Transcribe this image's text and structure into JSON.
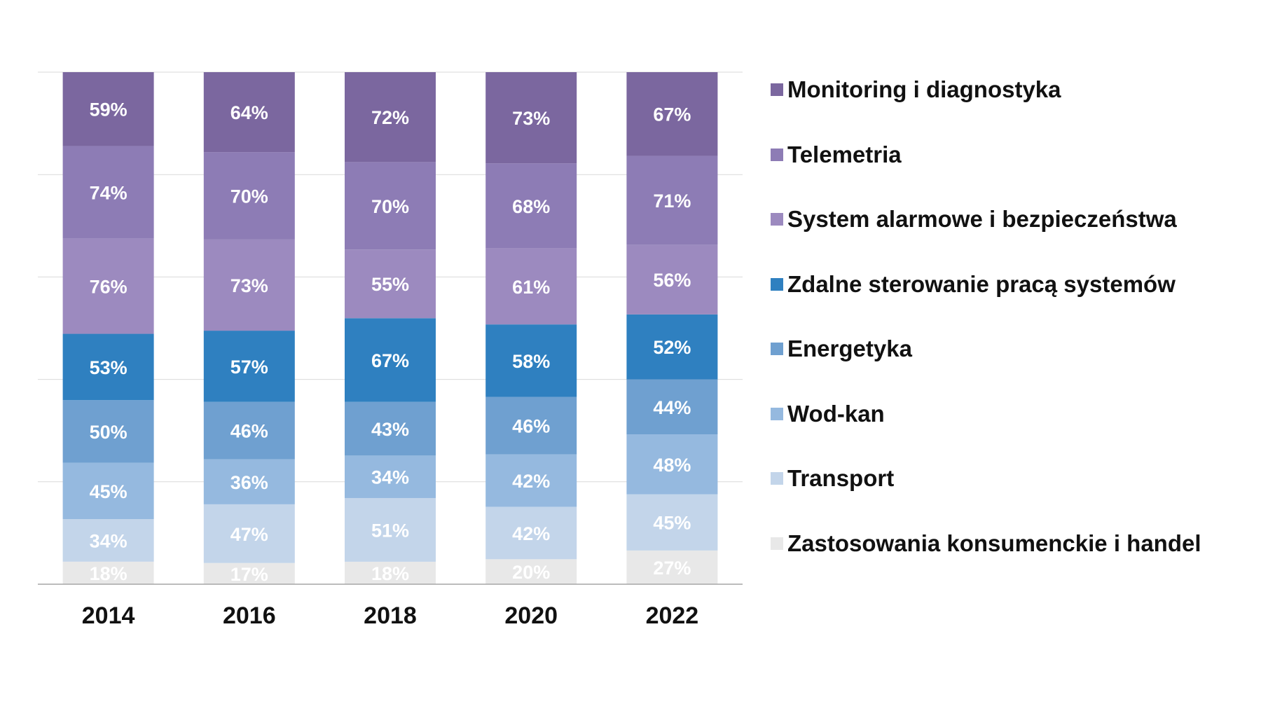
{
  "chart_data": {
    "type": "bar",
    "stacked": true,
    "categories": [
      "2014",
      "2016",
      "2018",
      "2020",
      "2022"
    ],
    "series": [
      {
        "name": "Zastosowania konsumenckie i handel",
        "color": "#e8e8e8",
        "label_color": "#ffffff",
        "values": [
          18,
          17,
          18,
          20,
          27
        ]
      },
      {
        "name": "Transport",
        "color": "#c3d5ea",
        "label_color": "#ffffff",
        "values": [
          34,
          47,
          51,
          42,
          45
        ]
      },
      {
        "name": "Wod-kan",
        "color": "#95b9df",
        "label_color": "#ffffff",
        "values": [
          45,
          36,
          34,
          42,
          48
        ]
      },
      {
        "name": "Energetyka",
        "color": "#6fa0d0",
        "label_color": "#ffffff",
        "values": [
          50,
          46,
          43,
          46,
          44
        ]
      },
      {
        "name": "Zdalne sterowanie pracą systemów",
        "color": "#2f80c0",
        "label_color": "#ffffff",
        "values": [
          53,
          57,
          67,
          58,
          52
        ]
      },
      {
        "name": "System alarmowe i bezpieczeństwa",
        "color": "#9c8abf",
        "label_color": "#ffffff",
        "values": [
          76,
          73,
          55,
          61,
          56
        ]
      },
      {
        "name": "Telemetria",
        "color": "#8d7cb5",
        "label_color": "#ffffff",
        "values": [
          74,
          70,
          70,
          68,
          71
        ]
      },
      {
        "name": "Monitoring i diagnostyka",
        "color": "#7b679f",
        "label_color": "#ffffff",
        "values": [
          59,
          64,
          72,
          73,
          67
        ]
      }
    ],
    "value_suffix": "%",
    "grid": true,
    "legend_position": "right"
  },
  "legend_order": [
    7,
    6,
    5,
    4,
    3,
    2,
    1,
    0
  ]
}
